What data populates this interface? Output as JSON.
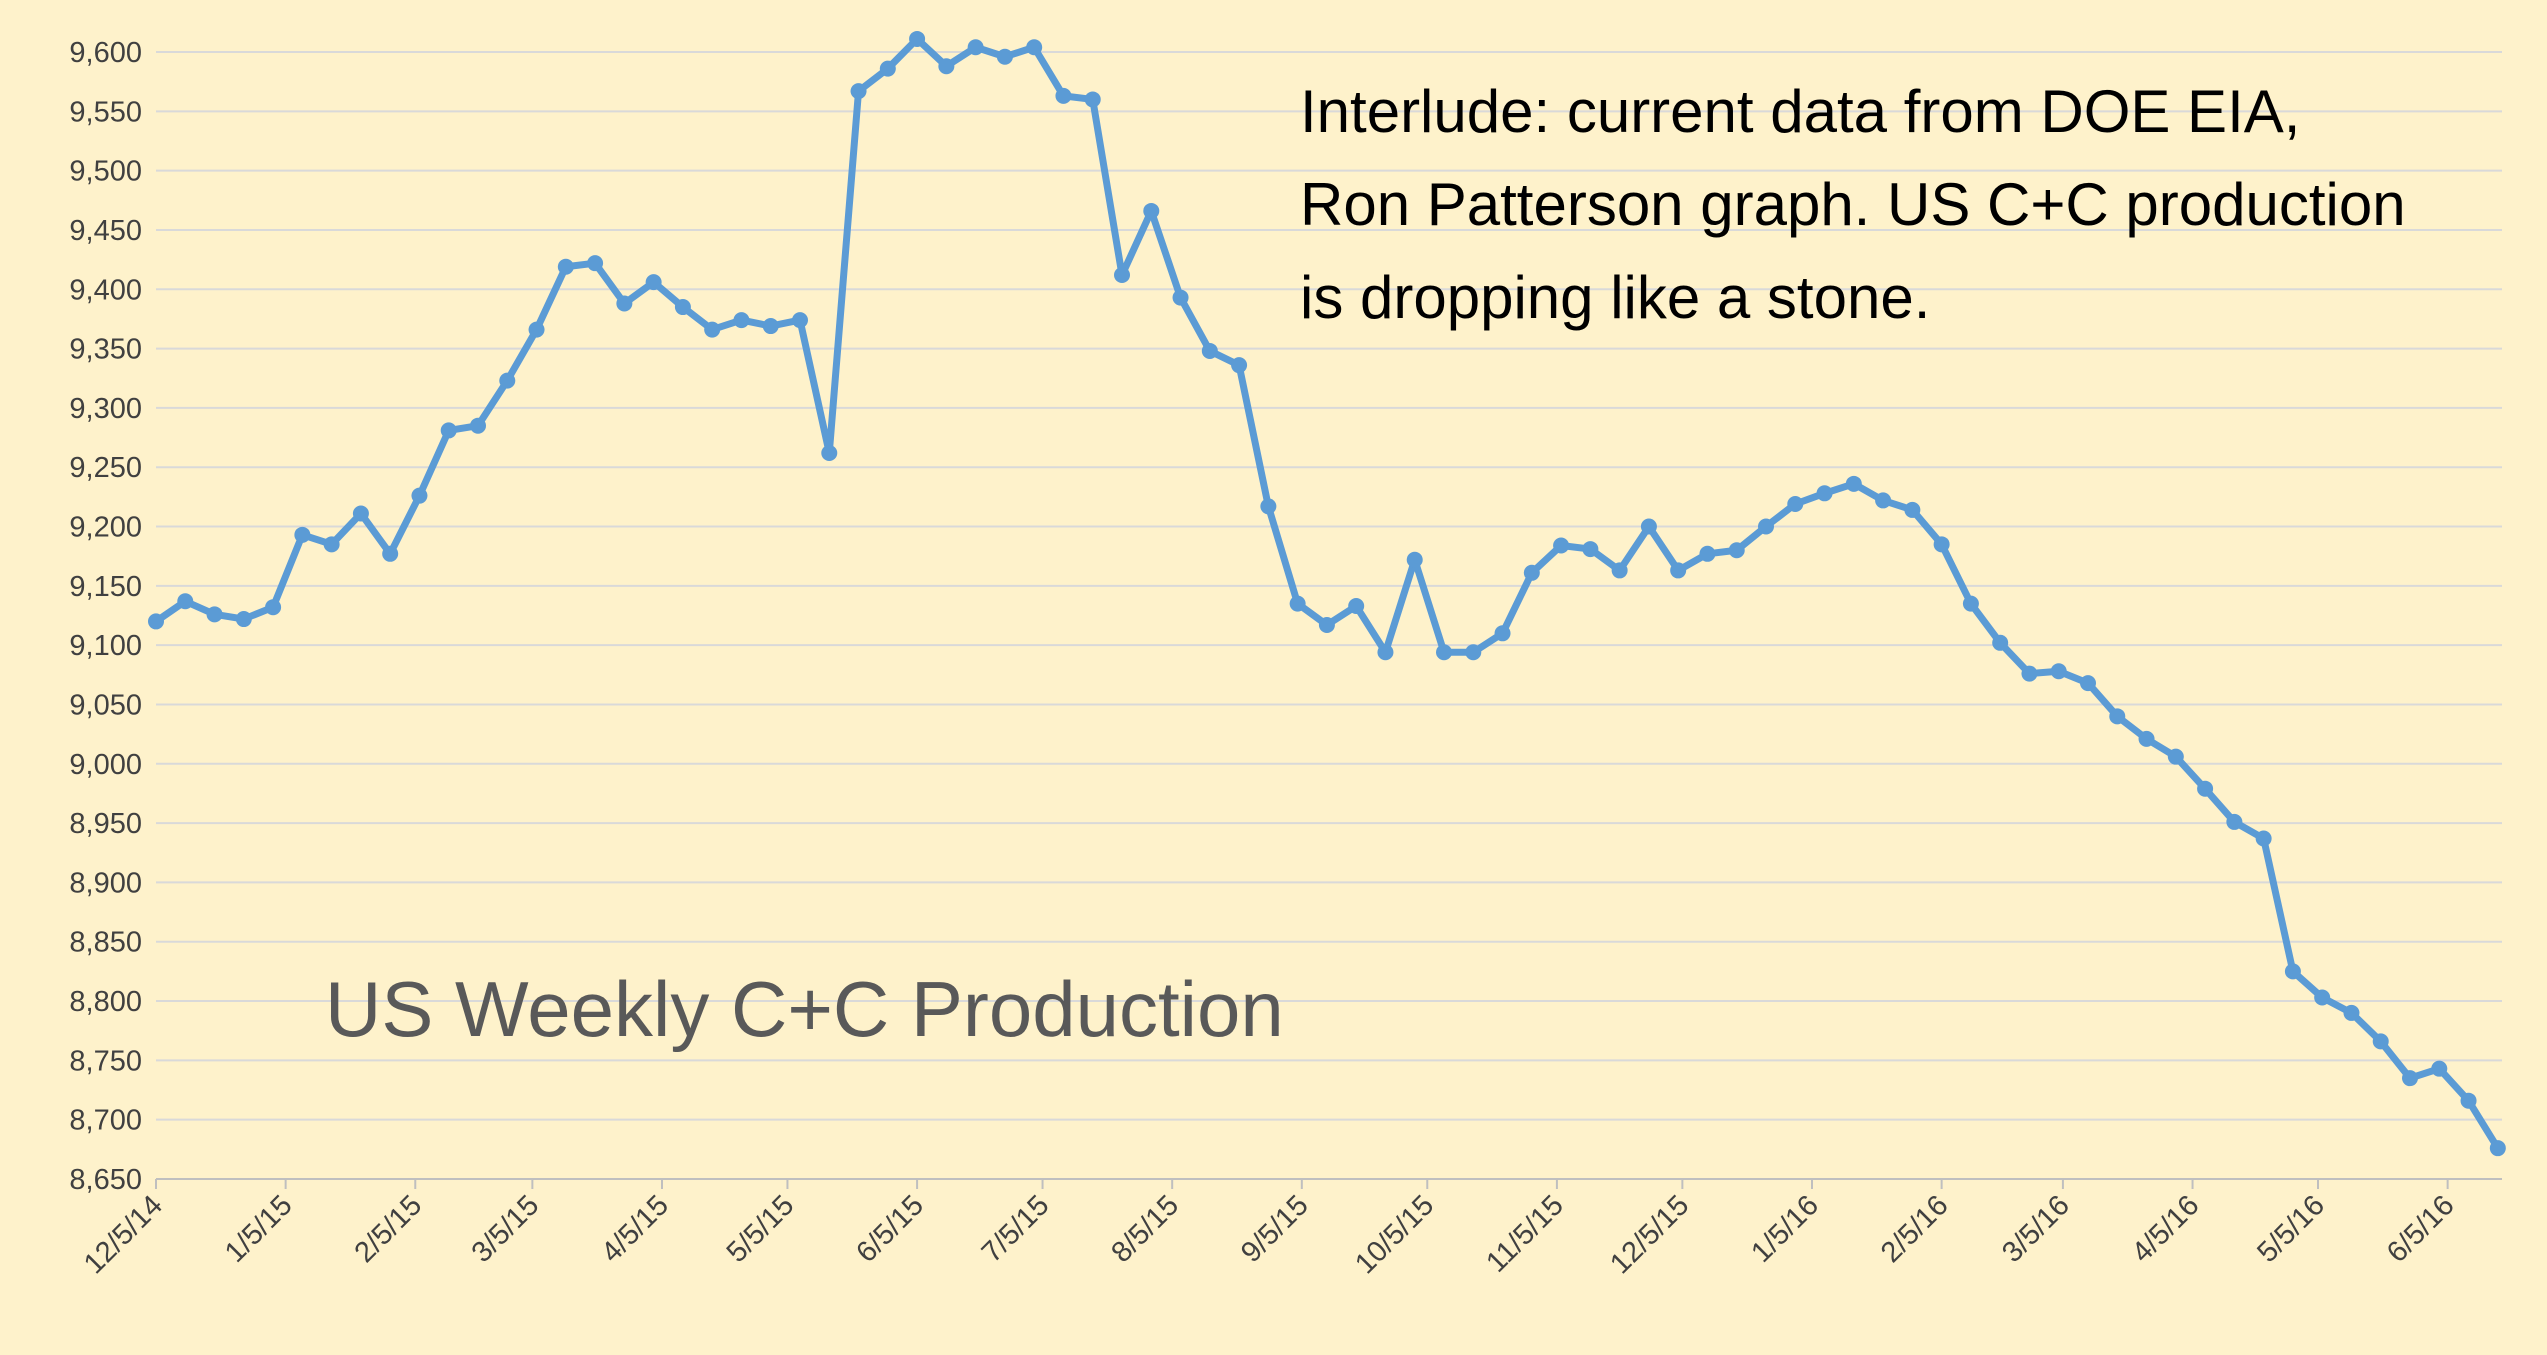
{
  "chart_data": {
    "type": "line",
    "title": "US Weekly C+C Production",
    "annotation": [
      "Interlude: current data from DOE EIA,",
      "Ron Patterson graph. US C+C production",
      "is dropping like a stone."
    ],
    "x": [
      "2014-12-05",
      "2014-12-12",
      "2014-12-19",
      "2014-12-26",
      "2015-01-02",
      "2015-01-09",
      "2015-01-16",
      "2015-01-23",
      "2015-01-30",
      "2015-02-06",
      "2015-02-13",
      "2015-02-20",
      "2015-02-27",
      "2015-03-06",
      "2015-03-13",
      "2015-03-20",
      "2015-03-27",
      "2015-04-03",
      "2015-04-10",
      "2015-04-17",
      "2015-04-24",
      "2015-05-01",
      "2015-05-08",
      "2015-05-15",
      "2015-05-22",
      "2015-05-29",
      "2015-06-05",
      "2015-06-12",
      "2015-06-19",
      "2015-06-26",
      "2015-07-03",
      "2015-07-10",
      "2015-07-17",
      "2015-07-24",
      "2015-07-31",
      "2015-08-07",
      "2015-08-14",
      "2015-08-21",
      "2015-08-28",
      "2015-09-04",
      "2015-09-11",
      "2015-09-18",
      "2015-09-25",
      "2015-10-02",
      "2015-10-09",
      "2015-10-16",
      "2015-10-23",
      "2015-10-30",
      "2015-11-06",
      "2015-11-13",
      "2015-11-20",
      "2015-11-27",
      "2015-12-04",
      "2015-12-11",
      "2015-12-18",
      "2015-12-25",
      "2016-01-01",
      "2016-01-08",
      "2016-01-15",
      "2016-01-22",
      "2016-01-29",
      "2016-02-05",
      "2016-02-12",
      "2016-02-19",
      "2016-02-26",
      "2016-03-04",
      "2016-03-11",
      "2016-03-18",
      "2016-03-25",
      "2016-04-01",
      "2016-04-08",
      "2016-04-15",
      "2016-04-22",
      "2016-04-29",
      "2016-05-06",
      "2016-05-13",
      "2016-05-20",
      "2016-05-27",
      "2016-06-03",
      "2016-06-10",
      "2016-06-17"
    ],
    "series": [
      {
        "name": "US Weekly C+C Production",
        "color": "#5b9bd5",
        "values": [
          9120,
          9137,
          9126,
          9122,
          9132,
          9193,
          9185,
          9211,
          9177,
          9226,
          9281,
          9285,
          9323,
          9366,
          9419,
          9422,
          9388,
          9406,
          9385,
          9366,
          9374,
          9369,
          9374,
          9262,
          9567,
          9586,
          9611,
          9588,
          9604,
          9596,
          9604,
          9563,
          9560,
          9412,
          9466,
          9393,
          9348,
          9336,
          9217,
          9135,
          9117,
          9133,
          9094,
          9172,
          9094,
          9094,
          9110,
          9161,
          9184,
          9181,
          9163,
          9200,
          9163,
          9177,
          9180,
          9200,
          9219,
          9228,
          9236,
          9222,
          9214,
          9185,
          9135,
          9102,
          9076,
          9078,
          9068,
          9040,
          9021,
          9006,
          8979,
          8951,
          8937,
          8825,
          8803,
          8790,
          8766,
          8735,
          8743,
          8716,
          8676
        ]
      }
    ],
    "xlim": [
      "2014-12-05",
      "2016-06-18"
    ],
    "xticks": [
      {
        "value": "2014-12-05",
        "label": "12/5/14"
      },
      {
        "value": "2015-01-05",
        "label": "1/5/15"
      },
      {
        "value": "2015-02-05",
        "label": "2/5/15"
      },
      {
        "value": "2015-03-05",
        "label": "3/5/15"
      },
      {
        "value": "2015-04-05",
        "label": "4/5/15"
      },
      {
        "value": "2015-05-05",
        "label": "5/5/15"
      },
      {
        "value": "2015-06-05",
        "label": "6/5/15"
      },
      {
        "value": "2015-07-05",
        "label": "7/5/15"
      },
      {
        "value": "2015-08-05",
        "label": "8/5/15"
      },
      {
        "value": "2015-09-05",
        "label": "9/5/15"
      },
      {
        "value": "2015-10-05",
        "label": "10/5/15"
      },
      {
        "value": "2015-11-05",
        "label": "11/5/15"
      },
      {
        "value": "2015-12-05",
        "label": "12/5/15"
      },
      {
        "value": "2016-01-05",
        "label": "1/5/16"
      },
      {
        "value": "2016-02-05",
        "label": "2/5/16"
      },
      {
        "value": "2016-03-05",
        "label": "3/5/16"
      },
      {
        "value": "2016-04-05",
        "label": "4/5/16"
      },
      {
        "value": "2016-05-05",
        "label": "5/5/16"
      },
      {
        "value": "2016-06-05",
        "label": "6/5/16"
      }
    ],
    "ylim": [
      8650,
      9600
    ],
    "yticks": [
      {
        "value": 8650,
        "label": "8,650"
      },
      {
        "value": 8700,
        "label": "8,700"
      },
      {
        "value": 8750,
        "label": "8,750"
      },
      {
        "value": 8800,
        "label": "8,800"
      },
      {
        "value": 8850,
        "label": "8,850"
      },
      {
        "value": 8900,
        "label": "8,900"
      },
      {
        "value": 8950,
        "label": "8,950"
      },
      {
        "value": 9000,
        "label": "9,000"
      },
      {
        "value": 9050,
        "label": "9,050"
      },
      {
        "value": 9100,
        "label": "9,100"
      },
      {
        "value": 9150,
        "label": "9,150"
      },
      {
        "value": 9200,
        "label": "9,200"
      },
      {
        "value": 9250,
        "label": "9,250"
      },
      {
        "value": 9300,
        "label": "9,300"
      },
      {
        "value": 9350,
        "label": "9,350"
      },
      {
        "value": 9400,
        "label": "9,400"
      },
      {
        "value": 9450,
        "label": "9,450"
      },
      {
        "value": 9500,
        "label": "9,500"
      },
      {
        "value": 9550,
        "label": "9,550"
      },
      {
        "value": 9600,
        "label": "9,600"
      }
    ],
    "grid": true
  }
}
